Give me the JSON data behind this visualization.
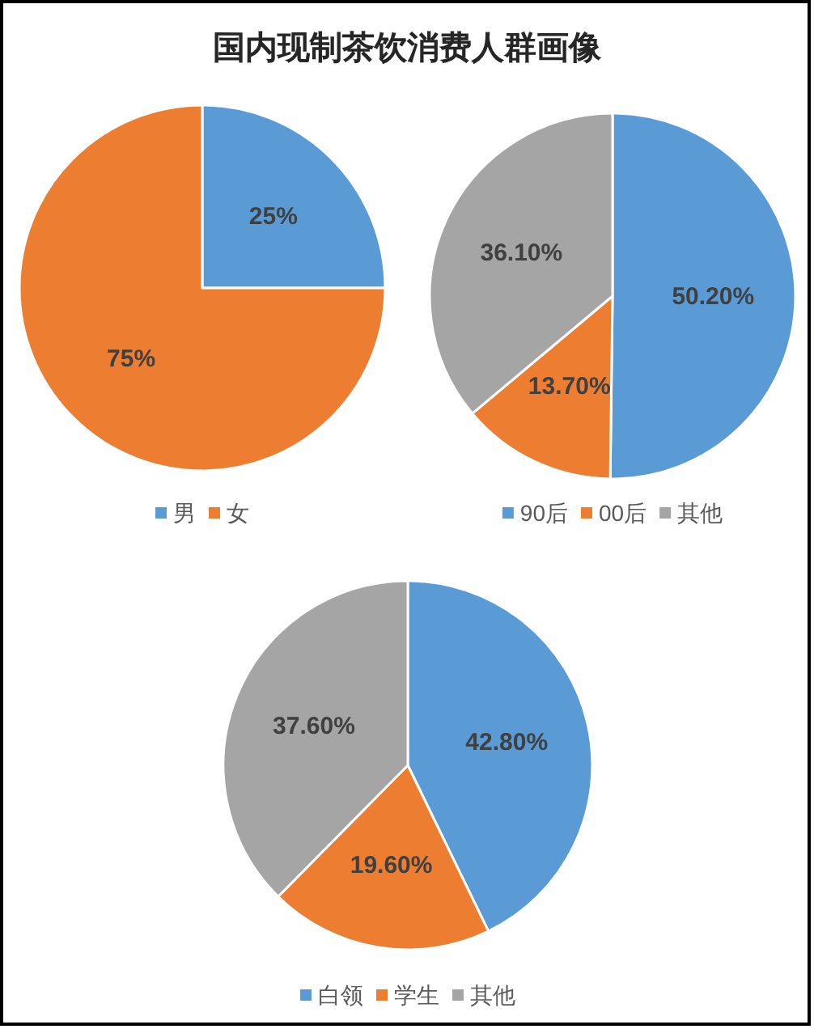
{
  "chart_data": [
    {
      "type": "pie",
      "title": "国内现制茶饮消费人群画像",
      "categories": [
        "男",
        "女"
      ],
      "values": [
        25,
        75
      ],
      "colors": [
        "#5b9bd5",
        "#ed7d31"
      ],
      "value_labels": [
        "25%",
        "75%"
      ],
      "legend": "bottom"
    },
    {
      "type": "pie",
      "categories": [
        "90后",
        "00后",
        "其他"
      ],
      "values": [
        50.2,
        13.7,
        36.1
      ],
      "colors": [
        "#5b9bd5",
        "#ed7d31",
        "#a5a5a5"
      ],
      "value_labels": [
        "50.20%",
        "13.70%",
        "36.10%"
      ],
      "legend": "bottom"
    },
    {
      "type": "pie",
      "categories": [
        "白领",
        "学生",
        "其他"
      ],
      "values": [
        42.8,
        19.6,
        37.6
      ],
      "colors": [
        "#5b9bd5",
        "#ed7d31",
        "#a5a5a5"
      ],
      "value_labels": [
        "42.80%",
        "19.60%",
        "37.60%"
      ],
      "legend": "bottom"
    }
  ]
}
